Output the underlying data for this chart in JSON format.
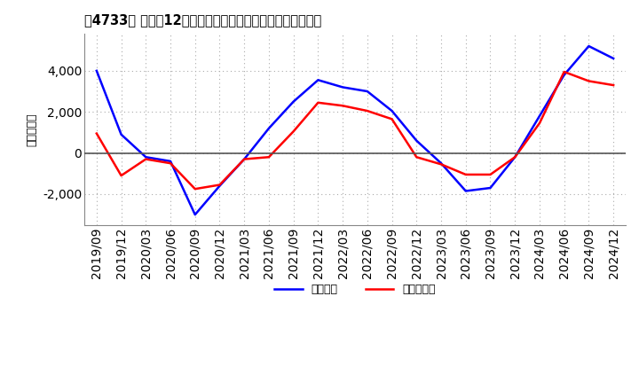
{
  "title": "［4733］ 利益だ12か月移動合計の対前年同期増減額の推移",
  "ylabel": "（百万円）",
  "legend_keijo": "経常利益",
  "legend_touki": "当期純利益",
  "x_labels": [
    "2019/09",
    "2019/12",
    "2020/03",
    "2020/06",
    "2020/09",
    "2020/12",
    "2021/03",
    "2021/06",
    "2021/09",
    "2021/12",
    "2022/03",
    "2022/06",
    "2022/09",
    "2022/12",
    "2023/03",
    "2023/06",
    "2023/09",
    "2023/12",
    "2024/03",
    "2024/06",
    "2024/09",
    "2024/12"
  ],
  "keijo_rieki": [
    4000,
    900,
    -200,
    -400,
    -3000,
    -1600,
    -300,
    1200,
    2500,
    3550,
    3200,
    3000,
    2050,
    600,
    -500,
    -1850,
    -1700,
    -200,
    1800,
    3800,
    5200,
    4600
  ],
  "touki_junrieki": [
    950,
    -1100,
    -300,
    -500,
    -1750,
    -1550,
    -300,
    -200,
    1050,
    2450,
    2300,
    2050,
    1650,
    -200,
    -550,
    -1050,
    -1050,
    -200,
    1450,
    3950,
    3500,
    3300
  ],
  "line_color_blue": "#0000ff",
  "line_color_red": "#ff0000",
  "ylim_min": -3500,
  "ylim_max": 5800,
  "yticks": [
    -2000,
    0,
    2000,
    4000
  ],
  "background_color": "#ffffff",
  "grid_color": "#aaaaaa",
  "zero_line_color": "#555555"
}
